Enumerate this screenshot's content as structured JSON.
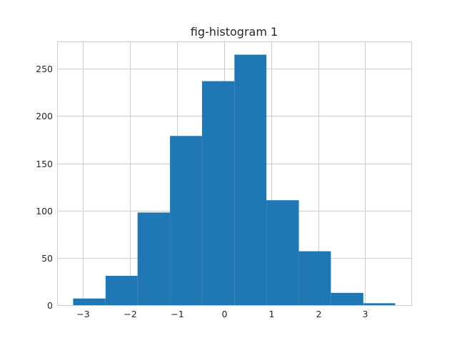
{
  "chart_data": {
    "type": "bar",
    "title": "fig-histogram 1",
    "xlabel": "",
    "ylabel": "",
    "xlim": [
      -3.55,
      3.98
    ],
    "ylim": [
      0,
      279
    ],
    "grid": true,
    "bar_color": "#1f77b4",
    "bin_edges": [
      -3.21,
      -2.52,
      -1.84,
      -1.15,
      -0.47,
      0.22,
      0.9,
      1.59,
      2.27,
      2.96,
      3.64
    ],
    "values": [
      7,
      31,
      98,
      179,
      237,
      265,
      111,
      57,
      13,
      2
    ],
    "x_ticks": [
      -3,
      -2,
      -1,
      0,
      1,
      2,
      3
    ],
    "x_tick_labels": [
      "−3",
      "−2",
      "−1",
      "0",
      "1",
      "2",
      "3"
    ],
    "y_ticks": [
      0,
      50,
      100,
      150,
      200,
      250
    ],
    "y_tick_labels": [
      "0",
      "50",
      "100",
      "150",
      "200",
      "250"
    ]
  }
}
